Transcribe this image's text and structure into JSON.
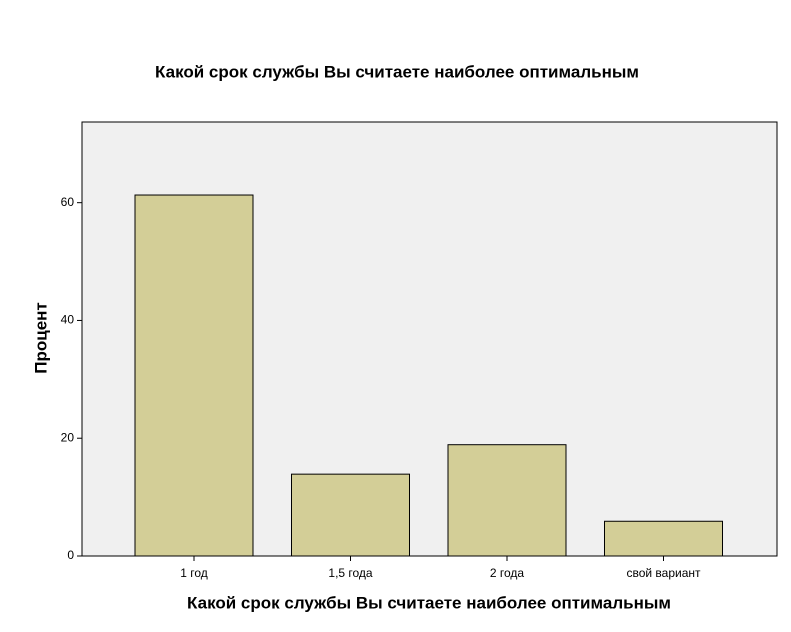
{
  "chart_data": {
    "type": "bar",
    "title": "Какой срок службы Вы считаете наиболее оптимальным",
    "x_label": "Какой срок службы Вы считаете наиболее оптимальным",
    "y_label": "Процент",
    "categories": [
      "1 год",
      "1,5 года",
      "2 года",
      "свой вариант"
    ],
    "values": [
      61.3,
      13.9,
      18.9,
      5.9
    ],
    "color": "#d3ce97",
    "ylim": [
      0,
      73.7
    ],
    "yticks": [
      0,
      20,
      40,
      60
    ],
    "grid": false
  }
}
